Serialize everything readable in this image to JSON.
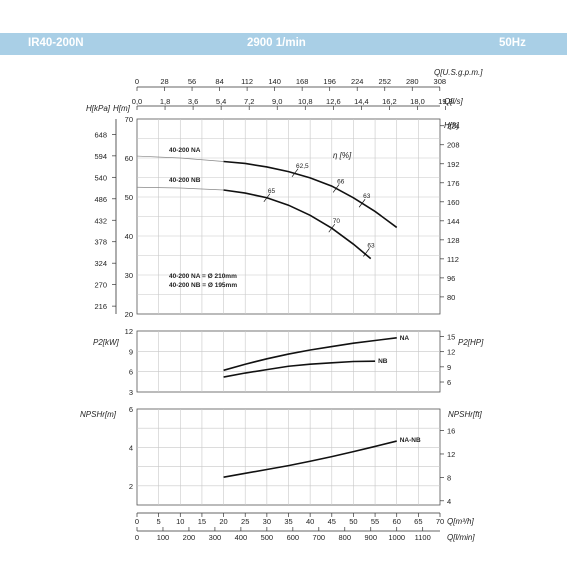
{
  "header": {
    "model": "IR40-200N",
    "speed": "2900 1/min",
    "freq": "50Hz"
  },
  "colors": {
    "header_bg": "#a9cfe6",
    "curve": "#111111",
    "grid": "#c8c8c8"
  },
  "chart_data": {
    "type": "line",
    "top_axis": {
      "usgpm": {
        "label": "Q[U.S.g.p.m.]",
        "ticks": [
          "0",
          "28",
          "56",
          "84",
          "112",
          "140",
          "168",
          "196",
          "224",
          "252",
          "280",
          "308"
        ],
        "values": [
          0,
          28,
          56,
          84,
          112,
          140,
          168,
          196,
          224,
          252,
          280,
          308
        ]
      },
      "ls": {
        "label": "Q[l/s]",
        "ticks": [
          "0,0",
          "1,8",
          "3,6",
          "5,4",
          "7,2",
          "9,0",
          "10,8",
          "12,6",
          "14,4",
          "16,2",
          "18,0",
          "19,8"
        ],
        "values": [
          0,
          1.8,
          3.6,
          5.4,
          7.2,
          9.0,
          10.8,
          12.6,
          14.4,
          16.2,
          18.0,
          19.8
        ]
      }
    },
    "bottom_axis": {
      "m3h": {
        "label": "Q[m³/h]",
        "ticks": [
          "0",
          "5",
          "10",
          "15",
          "20",
          "25",
          "30",
          "35",
          "40",
          "45",
          "50",
          "55",
          "60",
          "65",
          "70"
        ],
        "values": [
          0,
          5,
          10,
          15,
          20,
          25,
          30,
          35,
          40,
          45,
          50,
          55,
          60,
          65,
          70
        ]
      },
      "lmin": {
        "label": "Q[l/min]",
        "ticks": [
          "0",
          "100",
          "200",
          "300",
          "400",
          "500",
          "600",
          "700",
          "800",
          "900",
          "1000",
          "1100"
        ],
        "values": [
          0,
          100,
          200,
          300,
          400,
          500,
          600,
          700,
          800,
          900,
          1000,
          1100
        ]
      }
    },
    "head": {
      "ylabel_m": "H[m]",
      "ylabel_kpa": "H[kPa]",
      "ylabel_ft": "H[ft]",
      "ylim": [
        20,
        70
      ],
      "yticks_m": [
        "20",
        "30",
        "40",
        "50",
        "60",
        "70"
      ],
      "yticks_kpa": [
        "216",
        "270",
        "324",
        "378",
        "432",
        "486",
        "540",
        "594",
        "648"
      ],
      "yticks_kpa_values": [
        216,
        270,
        324,
        378,
        432,
        486,
        540,
        594,
        648
      ],
      "yticks_ft": [
        "80",
        "96",
        "112",
        "128",
        "144",
        "160",
        "176",
        "192",
        "208",
        "224"
      ],
      "yticks_ft_values": [
        80,
        96,
        112,
        128,
        144,
        160,
        176,
        192,
        208,
        224
      ],
      "eta_label": "η [%]",
      "series": [
        {
          "name": "40-200 NA",
          "x": [
            0,
            10,
            20,
            25,
            30,
            35,
            40,
            45,
            50,
            55,
            60
          ],
          "y": [
            60.5,
            60.0,
            59.1,
            58.6,
            57.7,
            56.5,
            54.9,
            52.8,
            49.8,
            46.3,
            42.2
          ],
          "solid_from": 20
        },
        {
          "name": "40-200 NB",
          "x": [
            0,
            10,
            20,
            25,
            30,
            35,
            40,
            45,
            50,
            54
          ],
          "y": [
            52.5,
            52.3,
            51.8,
            51.0,
            49.8,
            47.9,
            45.3,
            42.0,
            37.9,
            34.2
          ],
          "solid_from": 20
        }
      ],
      "eff_marks": [
        {
          "label": "62,5",
          "x": 36.5,
          "y": 56.2
        },
        {
          "label": "66",
          "x": 46,
          "y": 52.2
        },
        {
          "label": "63",
          "x": 52,
          "y": 48.4
        },
        {
          "label": "65",
          "x": 30,
          "y": 49.8
        },
        {
          "label": "70",
          "x": 45,
          "y": 42.0
        },
        {
          "label": "63",
          "x": 53,
          "y": 35.8
        }
      ],
      "note_na": "40-200 NA = Ø 210mm",
      "note_nb": "40-200 NB = Ø 195mm"
    },
    "power": {
      "ylabel_kw": "P2[kW]",
      "ylabel_hp": "P2[HP]",
      "ylim": [
        3,
        12
      ],
      "yticks_kw": [
        "3",
        "6",
        "9",
        "12"
      ],
      "yticks_hp": [
        "6",
        "9",
        "12",
        "15"
      ],
      "yticks_hp_values": [
        6,
        9,
        12,
        15
      ],
      "series": [
        {
          "name": "NA",
          "x": [
            20,
            25,
            30,
            35,
            40,
            45,
            50,
            55,
            60
          ],
          "y": [
            6.2,
            7.1,
            7.9,
            8.6,
            9.2,
            9.7,
            10.2,
            10.6,
            11.0
          ]
        },
        {
          "name": "NB",
          "x": [
            20,
            25,
            30,
            35,
            40,
            45,
            50,
            55
          ],
          "y": [
            5.2,
            5.8,
            6.3,
            6.8,
            7.1,
            7.3,
            7.5,
            7.55
          ]
        }
      ]
    },
    "npsh": {
      "ylabel_m": "NPSHr[m]",
      "ylabel_ft": "NPSHr[ft]",
      "ylim": [
        1,
        6
      ],
      "yticks_m": [
        "2",
        "4",
        "6"
      ],
      "yticks_m_values": [
        2,
        4,
        6
      ],
      "yticks_ft": [
        "4",
        "8",
        "12",
        "16"
      ],
      "yticks_ft_values": [
        4,
        8,
        12,
        16
      ],
      "series": [
        {
          "name": "NA-NB",
          "x": [
            20,
            25,
            30,
            35,
            40,
            45,
            50,
            55,
            60
          ],
          "y": [
            2.45,
            2.65,
            2.85,
            3.05,
            3.28,
            3.52,
            3.78,
            4.05,
            4.33
          ]
        }
      ]
    }
  }
}
